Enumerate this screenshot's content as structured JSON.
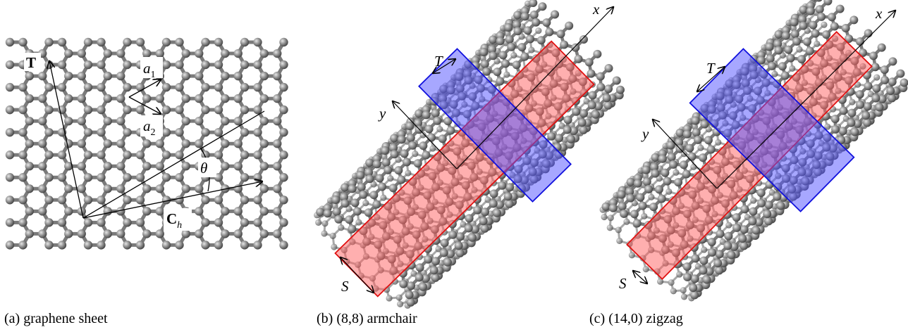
{
  "panels": [
    {
      "caption": "(a) graphene sheet",
      "labels": {
        "T": "T",
        "a1": "a",
        "a1_sub": "1",
        "a2": "a",
        "a2_sub": "2",
        "theta": "θ",
        "Ch": "C",
        "Ch_sub": "h"
      }
    },
    {
      "caption": "(b) (8,8) armchair",
      "labels": {
        "x": "x",
        "y": "y",
        "T": "T",
        "S": "S"
      }
    },
    {
      "caption": "(c) (14,0) zigzag",
      "labels": {
        "x": "x",
        "y": "y",
        "T": "T",
        "S": "S"
      }
    }
  ],
  "colors": {
    "atom": "#8c8c8c",
    "bond": "#7a7a7a",
    "red_band": "#ff6060",
    "red_edge": "#e01010",
    "blue_band": "#5050ff",
    "blue_edge": "#1010dd"
  }
}
